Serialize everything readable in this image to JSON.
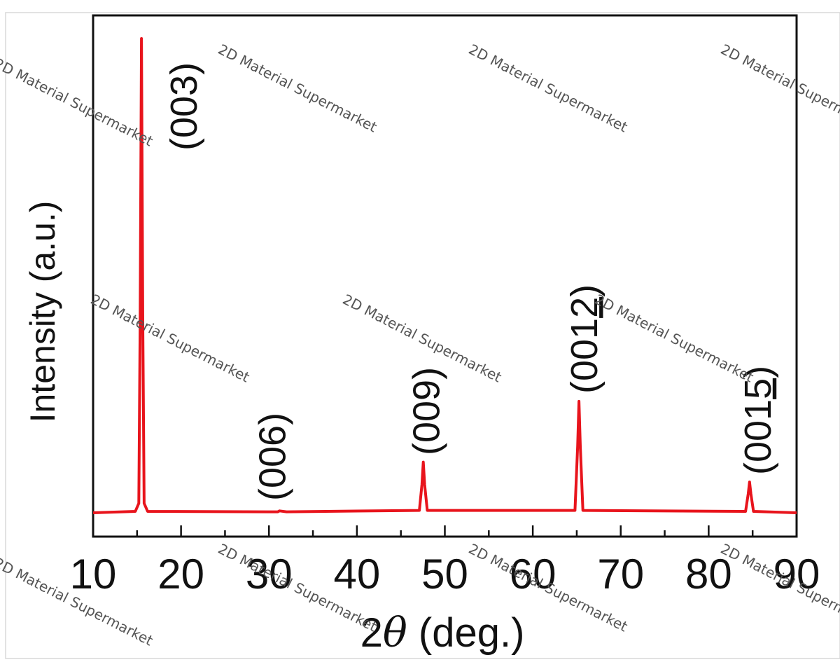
{
  "chart_data": {
    "type": "line",
    "title": "",
    "xlabel": "2θ (deg.)",
    "xlabel_parts": {
      "prefix": "2",
      "symbol": "θ",
      "suffix": " (deg.)"
    },
    "ylabel": "Intensity (a.u.)",
    "xlim": [
      10,
      90
    ],
    "ylim": [
      0,
      100
    ],
    "y_ticks_shown": false,
    "grid": false,
    "legend": "none",
    "x_ticks": [
      "10",
      "20",
      "30",
      "40",
      "50",
      "60",
      "70",
      "80",
      "90"
    ],
    "series": [
      {
        "color": "#e8141c",
        "x": [
          10,
          14.8,
          15.2,
          15.35,
          15.5,
          15.65,
          15.8,
          16.2,
          30,
          31,
          31.2,
          32,
          47.1,
          47.4,
          47.55,
          47.7,
          48.0,
          64.8,
          65.1,
          65.25,
          65.4,
          65.7,
          84.2,
          84.5,
          84.65,
          84.8,
          85.1,
          90
        ],
        "y": [
          0,
          0.3,
          2,
          40,
          100,
          40,
          2,
          0.3,
          0.2,
          0.2,
          0.4,
          0.2,
          0.5,
          6,
          10.7,
          6,
          0.5,
          0.5,
          14,
          23.5,
          14,
          0.5,
          0.3,
          4,
          6.5,
          4,
          0.3,
          0
        ]
      }
    ],
    "peak_labels": [
      {
        "x": 15.4,
        "y": 100,
        "main": "(003)",
        "underlined": ""
      },
      {
        "x": 31.2,
        "y": 0.4,
        "main": "(006)",
        "underlined": ""
      },
      {
        "x": 47.55,
        "y": 10.7,
        "main": "(009)",
        "underlined": ""
      },
      {
        "x": 65.25,
        "y": 23.5,
        "main": "(001",
        "underlined": "2",
        "close": ")"
      },
      {
        "x": 84.65,
        "y": 6.5,
        "main": "(001",
        "underlined": "5",
        "close": ")"
      }
    ]
  },
  "watermark": {
    "text": "2D Material Supermarket",
    "color": "#555555"
  }
}
